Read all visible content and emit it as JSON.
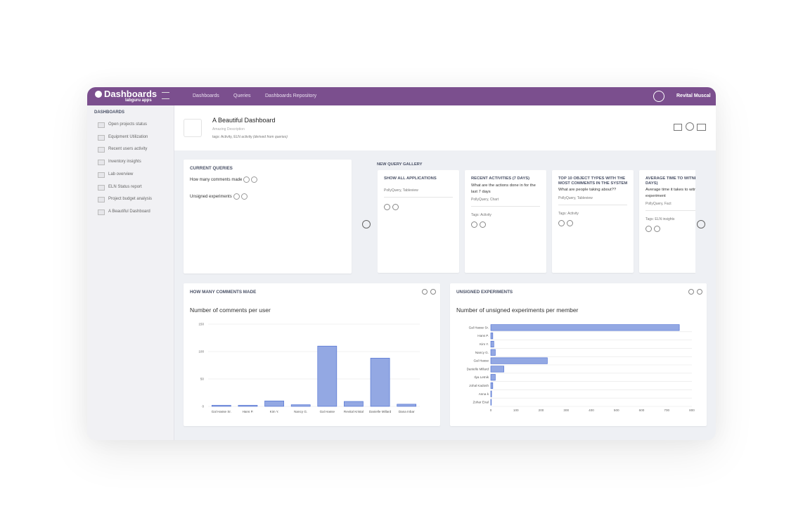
{
  "header": {
    "logo": "Dashboards",
    "logo_sub": "labguru apps",
    "nav": [
      "Dashboards",
      "Queries",
      "Dashboards Repository"
    ],
    "user": "Revital Muscal"
  },
  "sidebar": {
    "title": "DASHBOARDS",
    "items": [
      "Open projects status",
      "Equipment Utilization",
      "Recent users activity",
      "Inventory insights",
      "Lab overview",
      "ELN Status report",
      "Project budget analysis",
      "A Beautiful Dashboard"
    ]
  },
  "dashboard": {
    "title": "A Beautiful Dashboard",
    "description": "Amazing Description",
    "tags": "tags: Activity, ELN activity",
    "tags_note": "(derived from queries)"
  },
  "current_queries": {
    "title": "CURRENT QUERIES",
    "items": [
      "How many comments made",
      "Unsigned experiments"
    ]
  },
  "gallery": {
    "title": "NEW QUERY GALLERY",
    "cards": [
      {
        "title": "SHOW ALL APPLICATIONS",
        "source": "PollyQuery, Tableview"
      },
      {
        "title": "RECENT ACTIVITIES (7 DAYS)",
        "description": "What are the actions done in for the last 7 days",
        "source": "PollyQuery, Chart",
        "tags": "Tags: Activity"
      },
      {
        "title": "TOP 10 OBJECT TYPES WITH THE MOST COMMENTS IN THE SYSTEM",
        "description": "What are people taking about??",
        "source": "PollyQuery, Tableview",
        "tags": "Tags: Activity"
      },
      {
        "title": "AVERAGE TIME TO WITNESS (IN DAYS)",
        "description": "Average time it takes to witness an experiment",
        "source": "PollyQuery, Fact",
        "tags": "Tags: ELN insights"
      }
    ]
  },
  "widgets": [
    {
      "header": "HOW MANY COMMENTS MADE"
    },
    {
      "header": "UNSIGNED EXPERIMENTS"
    }
  ],
  "chart_data": [
    {
      "type": "bar",
      "title": "Number of comments per user",
      "categories": [
        "Gal Hasse Sr.",
        "Hans P.",
        "Kim Y.",
        "Nancy G.",
        "Gal Hasse",
        "Revital Kristal",
        "Danielle Millard",
        "Dana Inbar"
      ],
      "values": [
        2,
        2,
        10,
        3,
        110,
        9,
        88,
        4
      ],
      "ylim": [
        0,
        150
      ],
      "yticks": [
        0,
        50,
        100,
        150
      ],
      "grid": true,
      "color": "#93a8e3"
    },
    {
      "type": "barh",
      "title": "Number of unsigned experiments per member",
      "categories": [
        "Gal Hasse Sr.",
        "Hans P.",
        "Kim Y.",
        "Nancy G.",
        "Gal Hasse",
        "Danielle Millard",
        "Ilya Letnik",
        "Johal Kadosh",
        "Anna k",
        "Zohar Enal"
      ],
      "values": [
        750,
        8,
        12,
        18,
        225,
        52,
        18,
        8,
        3,
        2
      ],
      "xlim": [
        0,
        800
      ],
      "xticks": [
        0,
        100,
        200,
        300,
        400,
        500,
        600,
        700,
        800
      ],
      "grid": true,
      "color": "#93a8e3"
    }
  ]
}
